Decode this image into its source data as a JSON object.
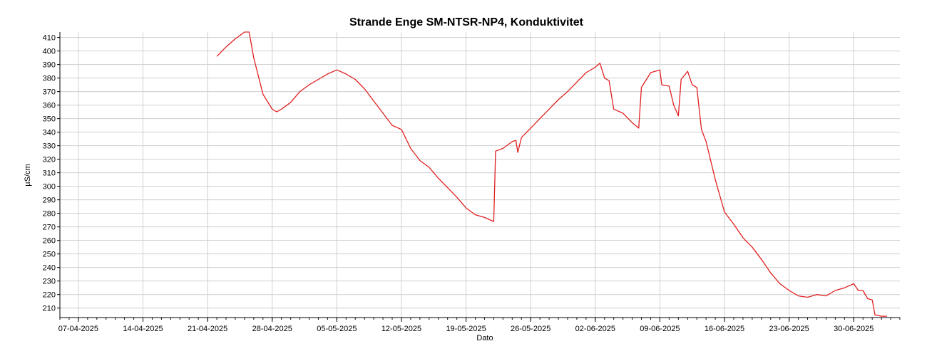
{
  "chart_data": {
    "type": "line",
    "title": "Strande Enge SM-NTSR-NP4, Konduktivitet",
    "xlabel": "Dato",
    "ylabel": "µS/cm",
    "xlim": [
      "2025-04-05",
      "2025-07-05"
    ],
    "ylim": [
      203,
      414
    ],
    "x_ticks": [
      "07-04-2025",
      "14-04-2025",
      "21-04-2025",
      "28-04-2025",
      "05-05-2025",
      "12-05-2025",
      "19-05-2025",
      "26-05-2025",
      "02-06-2025",
      "09-06-2025",
      "16-06-2025",
      "23-06-2025",
      "30-06-2025"
    ],
    "y_ticks": [
      210,
      220,
      230,
      240,
      250,
      260,
      270,
      280,
      290,
      300,
      310,
      320,
      330,
      340,
      350,
      360,
      370,
      380,
      390,
      400,
      410
    ],
    "grid": true,
    "colors": {
      "line": "#e02020",
      "grid": "#cfcfcf",
      "axis": "#000000"
    },
    "series": [
      {
        "values": [
          [
            "2025-04-22",
            396
          ],
          [
            "2025-04-23",
            403
          ],
          [
            "2025-04-24",
            409
          ],
          [
            "2025-04-25",
            414
          ],
          [
            "2025-04-25.5",
            414
          ],
          [
            "2025-04-26",
            395
          ],
          [
            "2025-04-27",
            368
          ],
          [
            "2025-04-28",
            357
          ],
          [
            "2025-04-28.5",
            355
          ],
          [
            "2025-04-29",
            357
          ],
          [
            "2025-04-30",
            362
          ],
          [
            "2025-05-01",
            370
          ],
          [
            "2025-05-02",
            375
          ],
          [
            "2025-05-03",
            379
          ],
          [
            "2025-05-04",
            383
          ],
          [
            "2025-05-05",
            386
          ],
          [
            "2025-05-06",
            383
          ],
          [
            "2025-05-07",
            379
          ],
          [
            "2025-05-08",
            372
          ],
          [
            "2025-05-09",
            363
          ],
          [
            "2025-05-10",
            354
          ],
          [
            "2025-05-11",
            345
          ],
          [
            "2025-05-12",
            342
          ],
          [
            "2025-05-13",
            328
          ],
          [
            "2025-05-14",
            319
          ],
          [
            "2025-05-15",
            314
          ],
          [
            "2025-05-16",
            306
          ],
          [
            "2025-05-17",
            299
          ],
          [
            "2025-05-18",
            292
          ],
          [
            "2025-05-19",
            284
          ],
          [
            "2025-05-20",
            279
          ],
          [
            "2025-05-21",
            277
          ],
          [
            "2025-05-22",
            274
          ],
          [
            "2025-05-22.2",
            326
          ],
          [
            "2025-05-23",
            328
          ],
          [
            "2025-05-24",
            333
          ],
          [
            "2025-05-24.4",
            334
          ],
          [
            "2025-05-24.6",
            325
          ],
          [
            "2025-05-25",
            336
          ],
          [
            "2025-05-26",
            343
          ],
          [
            "2025-05-27",
            350
          ],
          [
            "2025-05-28",
            357
          ],
          [
            "2025-05-29",
            364
          ],
          [
            "2025-05-30",
            370
          ],
          [
            "2025-05-31",
            377
          ],
          [
            "2025-06-01",
            384
          ],
          [
            "2025-06-02",
            388
          ],
          [
            "2025-06-02.5",
            391
          ],
          [
            "2025-06-03",
            380
          ],
          [
            "2025-06-03.5",
            378
          ],
          [
            "2025-06-04",
            357
          ],
          [
            "2025-06-05",
            354
          ],
          [
            "2025-06-06",
            347
          ],
          [
            "2025-06-06.7",
            343
          ],
          [
            "2025-06-07",
            373
          ],
          [
            "2025-06-08",
            384
          ],
          [
            "2025-06-09",
            386
          ],
          [
            "2025-06-09.2",
            375
          ],
          [
            "2025-06-10",
            374
          ],
          [
            "2025-06-10.5",
            360
          ],
          [
            "2025-06-11",
            352
          ],
          [
            "2025-06-11.3",
            379
          ],
          [
            "2025-06-12",
            385
          ],
          [
            "2025-06-12.5",
            375
          ],
          [
            "2025-06-13",
            373
          ],
          [
            "2025-06-13.5",
            342
          ],
          [
            "2025-06-14",
            333
          ],
          [
            "2025-06-15",
            305
          ],
          [
            "2025-06-16",
            281
          ],
          [
            "2025-06-17",
            272
          ],
          [
            "2025-06-18",
            262
          ],
          [
            "2025-06-19",
            255
          ],
          [
            "2025-06-20",
            246
          ],
          [
            "2025-06-21",
            236
          ],
          [
            "2025-06-22",
            228
          ],
          [
            "2025-06-23",
            223
          ],
          [
            "2025-06-24",
            219
          ],
          [
            "2025-06-25",
            218
          ],
          [
            "2025-06-26",
            220
          ],
          [
            "2025-06-27",
            219
          ],
          [
            "2025-06-28",
            223
          ],
          [
            "2025-06-29",
            225
          ],
          [
            "2025-06-30",
            228
          ],
          [
            "2025-06-30.5",
            223
          ],
          [
            "2025-07-01",
            223
          ],
          [
            "2025-07-01.5",
            217
          ],
          [
            "2025-07-02",
            216
          ],
          [
            "2025-07-02.3",
            205
          ],
          [
            "2025-07-03",
            204
          ],
          [
            "2025-07-03.6",
            204
          ]
        ]
      }
    ]
  }
}
